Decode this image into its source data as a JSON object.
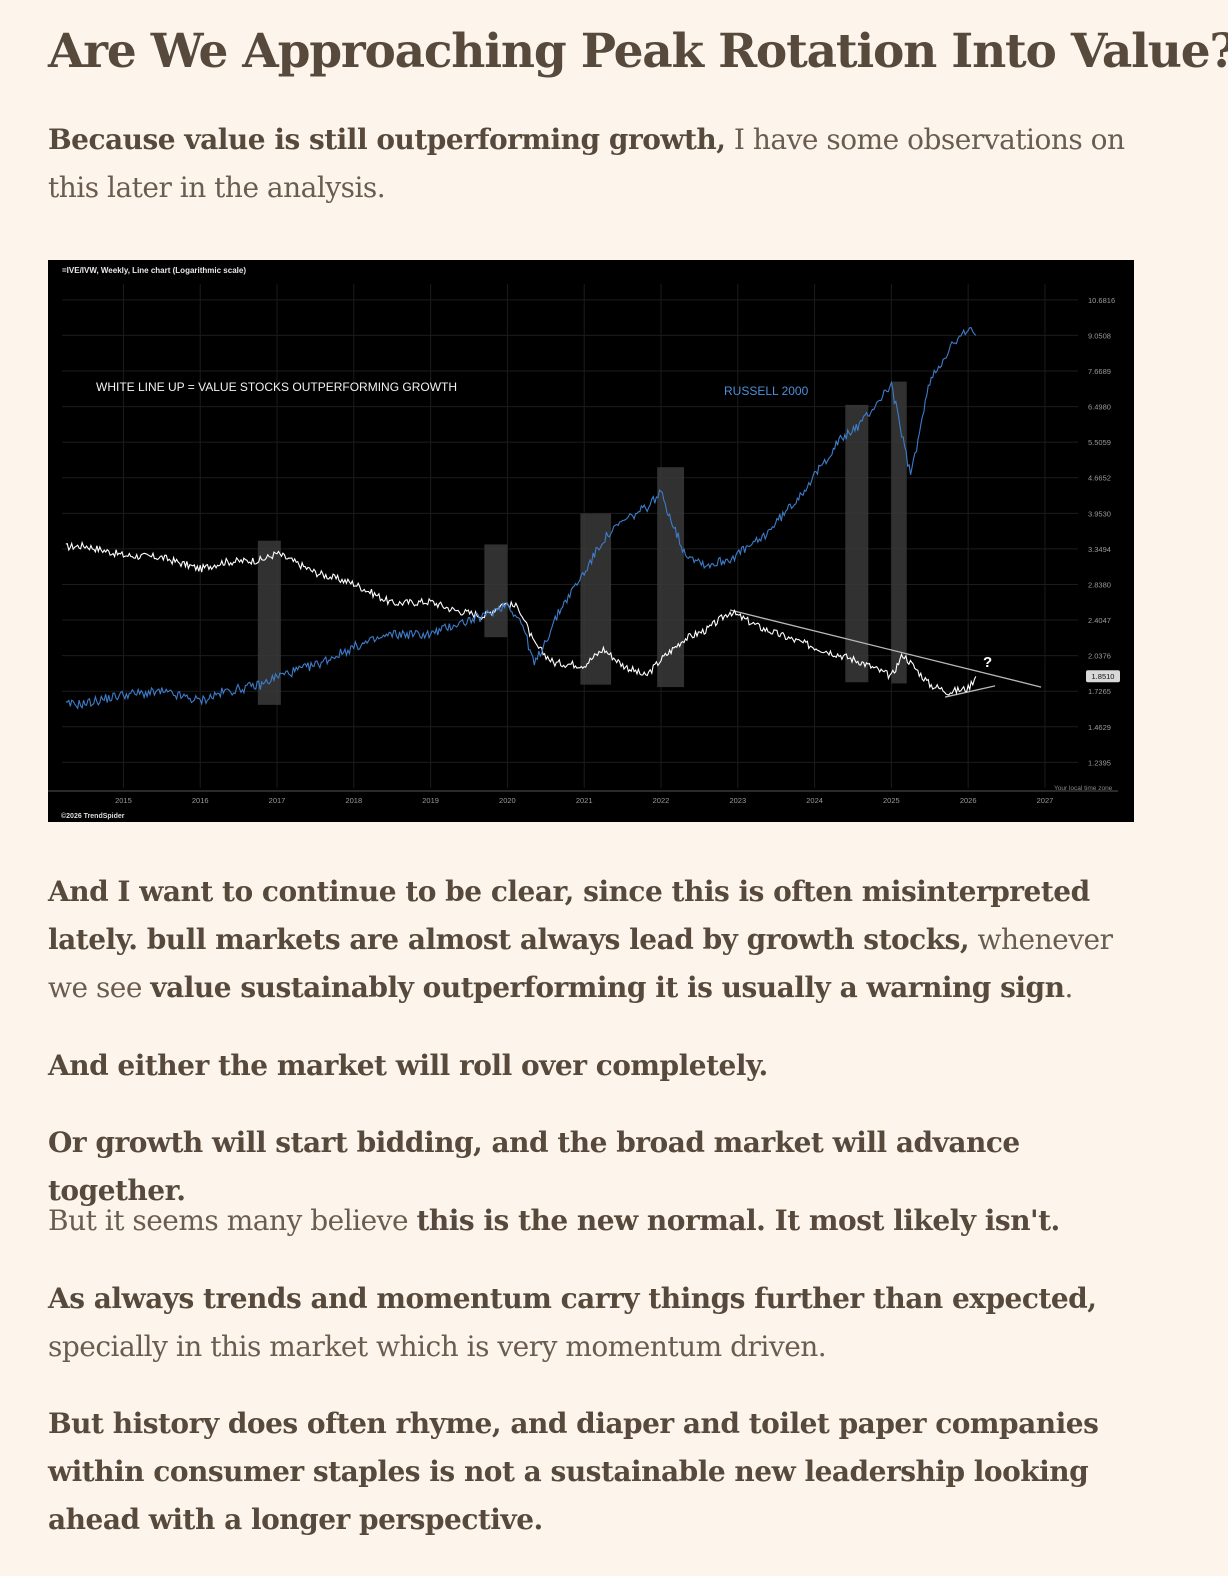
{
  "article": {
    "title": "Are We Approaching Peak Rotation Into Value?",
    "intro": {
      "bold": "Because value is still outperforming growth,",
      "rest": " I have some observations on this later in the analysis."
    },
    "p1": {
      "a": "And I want to continue to be clear, since this is often misinterpreted lately. bull markets are almost always lead by growth stocks,",
      "b": " whenever we see ",
      "c": "value sustainably outperforming it is usually a warning sign",
      "d": "."
    },
    "p2": "And either the market will roll over completely.",
    "p3": "Or growth will start bidding, and the broad market will advance together.",
    "p4": {
      "a": "But it seems many believe ",
      "b": "this is the new normal. It most likely isn't."
    },
    "p5": {
      "a": "As always trends and momentum carry things further than expected,",
      "b": " specially in this market which is very momentum driven."
    },
    "p6": "But history does often rhyme, and diaper and toilet paper companies within consumer staples is not a sustainable new leadership looking ahead with a longer perspective."
  },
  "chart": {
    "header": "=IVE/IVW, Weekly, Line chart (Logarithmic scale)",
    "annotation_left": "WHITE LINE UP = VALUE STOCKS OUTPERFORMING GROWTH",
    "annotation_blue": "RUSSELL 2000",
    "question_mark": "?",
    "footer": "©2026 TrendSpider",
    "timezone": "Your local time zone",
    "current_label": "1.8510",
    "colors": {
      "background": "#000000",
      "value_line": "#ffffff",
      "russell_line": "#3d7cc9",
      "shade": "#3a3a3a",
      "grid": "#1c1c1c",
      "axis_text": "#9a9a9a"
    }
  },
  "chart_data": {
    "type": "line",
    "title": "=IVE/IVW, Weekly, Line chart (Logarithmic scale)",
    "xlabel": "",
    "ylabel": "",
    "yscale": "log",
    "ylim": [
      1.1,
      11.5
    ],
    "xlim": [
      2014.2,
      2027.3
    ],
    "grid": true,
    "x_ticks": [
      "2015",
      "2016",
      "2017",
      "2018",
      "2019",
      "2020",
      "2021",
      "2022",
      "2023",
      "2024",
      "2025",
      "2026",
      "2027"
    ],
    "y_ticks": [
      "10.6816",
      "9.0508",
      "7.6689",
      "6.4980",
      "5.5059",
      "4.6652",
      "3.9530",
      "3.3494",
      "2.8380",
      "2.4047",
      "2.0376",
      "1.7265",
      "1.4629",
      "1.2395"
    ],
    "series": [
      {
        "style": "white",
        "x": [
          2014.25,
          2014.5,
          2015.0,
          2015.5,
          2016.0,
          2016.3,
          2016.8,
          2017.0,
          2017.5,
          2018.0,
          2018.5,
          2019.0,
          2019.3,
          2019.7,
          2019.95,
          2020.15,
          2020.35,
          2020.6,
          2021.0,
          2021.25,
          2021.5,
          2021.8,
          2022.0,
          2022.3,
          2022.6,
          2022.9,
          2023.3,
          2023.7,
          2024.0,
          2024.3,
          2024.6,
          2025.0,
          2025.15,
          2025.5,
          2025.75,
          2026.0,
          2026.1
        ],
        "values": [
          3.38,
          3.4,
          3.25,
          3.22,
          3.05,
          3.15,
          3.18,
          3.28,
          3.0,
          2.85,
          2.6,
          2.62,
          2.52,
          2.45,
          2.6,
          2.55,
          2.15,
          1.97,
          1.95,
          2.1,
          1.95,
          1.85,
          2.0,
          2.2,
          2.3,
          2.5,
          2.32,
          2.2,
          2.12,
          2.05,
          1.98,
          1.85,
          2.05,
          1.78,
          1.72,
          1.75,
          1.85
        ],
        "name": ""
      },
      {
        "style": "blue",
        "name": "RUSSELL 2000",
        "x": [
          2014.25,
          2014.5,
          2015.0,
          2015.5,
          2016.0,
          2016.3,
          2016.8,
          2017.0,
          2017.5,
          2018.0,
          2018.5,
          2019.0,
          2019.3,
          2019.7,
          2020.0,
          2020.2,
          2020.35,
          2020.7,
          2021.0,
          2021.25,
          2021.5,
          2021.8,
          2022.0,
          2022.3,
          2022.6,
          2022.9,
          2023.3,
          2023.7,
          2024.0,
          2024.3,
          2024.6,
          2025.0,
          2025.25,
          2025.5,
          2025.75,
          2026.0,
          2026.1
        ],
        "values": [
          1.62,
          1.63,
          1.7,
          1.72,
          1.65,
          1.72,
          1.78,
          1.85,
          1.95,
          2.12,
          2.25,
          2.25,
          2.35,
          2.45,
          2.6,
          2.35,
          1.95,
          2.55,
          3.0,
          3.5,
          3.8,
          4.05,
          4.35,
          3.3,
          3.1,
          3.2,
          3.5,
          4.1,
          4.7,
          5.5,
          6.0,
          7.2,
          4.7,
          7.3,
          8.5,
          9.3,
          9.05
        ]
      }
    ],
    "shaded_regions": [
      {
        "from": 2016.75,
        "to": 2017.05,
        "ymin": 1.62,
        "ymax": 3.48
      },
      {
        "from": 2019.7,
        "to": 2020.0,
        "ymin": 2.22,
        "ymax": 3.42
      },
      {
        "from": 2020.95,
        "to": 2021.35,
        "ymin": 1.78,
        "ymax": 3.95
      },
      {
        "from": 2021.95,
        "to": 2022.3,
        "ymin": 1.76,
        "ymax": 4.9
      },
      {
        "from": 2024.4,
        "to": 2024.7,
        "ymin": 1.8,
        "ymax": 6.55
      },
      {
        "from": 2025.0,
        "to": 2025.2,
        "ymin": 1.79,
        "ymax": 7.3
      }
    ],
    "trendlines": [
      {
        "x": [
          2022.9,
          2026.95
        ],
        "values": [
          2.52,
          1.76
        ]
      },
      {
        "x": [
          2025.7,
          2026.35
        ],
        "values": [
          1.68,
          1.77
        ]
      }
    ],
    "current_value": 1.851
  }
}
